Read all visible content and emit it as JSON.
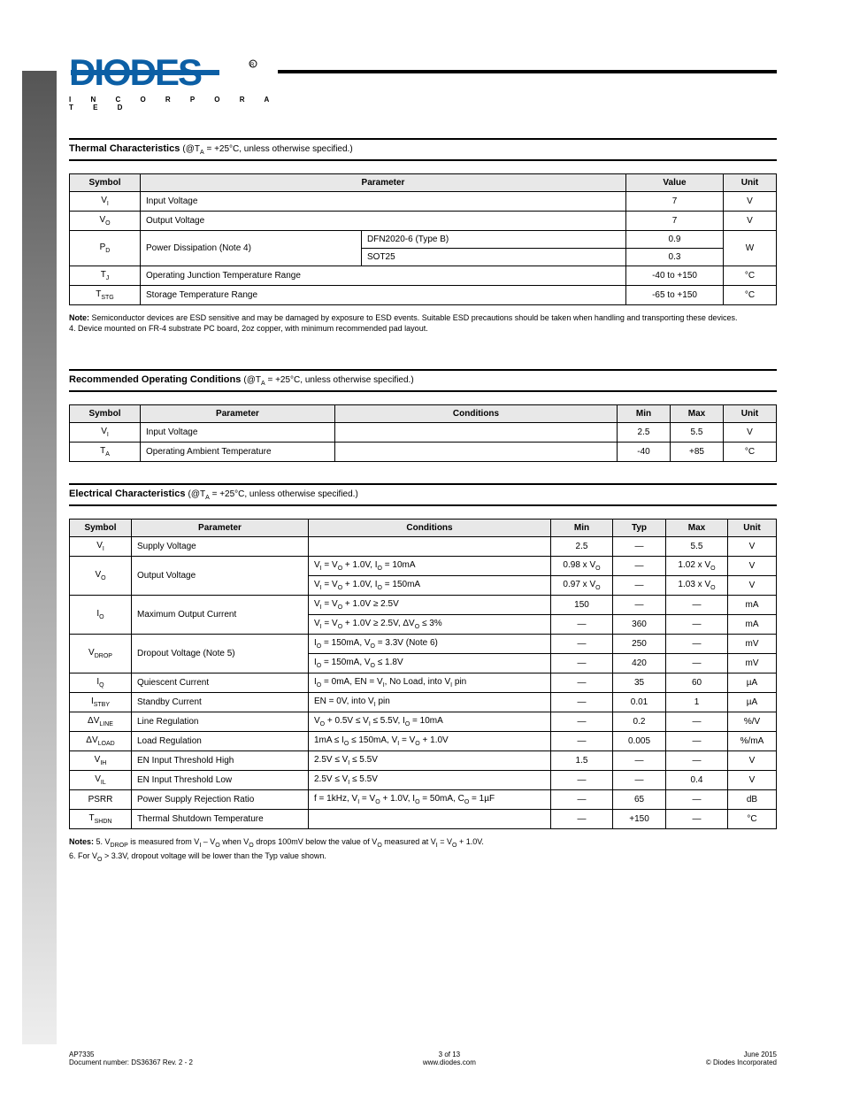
{
  "header": {
    "brand_word": "DIODES",
    "brand_sub": "I N C O R P O R A T E D",
    "brand_color": "#0c5fa5"
  },
  "section1": {
    "title": "Thermal Characteristics",
    "cond": "(@T",
    "cond_sub": "A",
    "cond_tail": " = +25°C, unless otherwise specified.)",
    "headers": [
      "Symbol",
      "Parameter",
      "Value",
      "Unit"
    ],
    "rows_simple": [
      {
        "sym": "V<sub>I</sub>",
        "param": "Input Voltage",
        "val": "7",
        "unit": "V"
      },
      {
        "sym": "V<sub>O</sub>",
        "param": "Output Voltage",
        "val": "7",
        "unit": "V"
      }
    ],
    "pd_symbol": "P<sub>D</sub>",
    "pd_param": "Power Dissipation (Note 4)",
    "pd_pkg1": "DFN2020-6 (Type B)",
    "pd_val1": "0.9",
    "pd_pkg2": "SOT25",
    "pd_val2": "0.3",
    "pd_unit": "W",
    "row_tj": {
      "sym": "T<sub>J</sub>",
      "param": "Operating Junction Temperature Range",
      "val": "-40 to +150",
      "unit": "°C"
    },
    "row_tstg": {
      "sym": "T<sub>STG</sub>",
      "param": "Storage Temperature Range",
      "val": "-65 to +150",
      "unit": "°C"
    },
    "notes": [
      "Semiconductor devices are ESD sensitive and may be damaged by exposure to ESD events. Suitable ESD precautions should be taken when handling and transporting these devices.",
      "4. Device mounted on FR-4 substrate PC board, 2oz copper, with minimum recommended pad layout."
    ]
  },
  "section2": {
    "title": "Recommended Operating Conditions",
    "cond": "(@T",
    "cond_sub": "A",
    "cond_tail": " = +25°C, unless otherwise specified.)",
    "headers": [
      "Symbol",
      "Parameter",
      "Conditions",
      "Min",
      "Max",
      "Unit"
    ],
    "rows": [
      {
        "sym": "V<sub>I</sub>",
        "param": "Input Voltage",
        "cond": "",
        "min": "2.5",
        "max": "5.5",
        "unit": "V"
      },
      {
        "sym": "T<sub>A</sub>",
        "param": "Operating Ambient Temperature",
        "cond": "",
        "min": "-40",
        "max": "+85",
        "unit": "°C"
      }
    ]
  },
  "section3": {
    "title": "Electrical Characteristics",
    "cond": "(@T",
    "cond_sub": "A",
    "cond_tail": " = +25°C, unless otherwise specified.)",
    "headers": [
      "Symbol",
      "Parameter",
      "Conditions",
      "Min",
      "Typ",
      "Max",
      "Unit"
    ],
    "rows": [
      {
        "sym": "V<sub>I</sub>",
        "param": "Supply Voltage",
        "cond": "",
        "min": "2.5",
        "typ": "—",
        "max": "5.5",
        "unit": "V"
      },
      {
        "sym": "V<sub>O</sub>",
        "param": "Output Voltage",
        "cond": "V<sub>I</sub> = V<sub>O</sub> + 1.0V, I<sub>O</sub> = 10mA",
        "min": "0.98 x V<sub>O</sub>",
        "typ": "—",
        "max": "1.02 x V<sub>O</sub>",
        "unit": "V",
        "rowspan": 2
      },
      {
        "cond": "V<sub>I</sub> = V<sub>O</sub> + 1.0V, I<sub>O</sub> = 150mA",
        "min": "0.97 x V<sub>O</sub>",
        "typ": "—",
        "max": "1.03 x V<sub>O</sub>",
        "unit": "V"
      },
      {
        "sym": "I<sub>O</sub>",
        "param": "Maximum Output Current",
        "cond": "V<sub>I</sub> = V<sub>O</sub> + 1.0V ≥ 2.5V",
        "min": "150",
        "typ": "—",
        "max": "—",
        "unit": "mA",
        "rowspan": 2
      },
      {
        "cond": "V<sub>I</sub> = V<sub>O</sub> + 1.0V ≥ 2.5V, ΔV<sub>O</sub> ≤ 3%",
        "min": "—",
        "typ": "360",
        "max": "—",
        "unit": "mA"
      },
      {
        "sym": "V<sub>DROP</sub>",
        "param": "Dropout Voltage (Note 5)",
        "cond": "I<sub>O</sub> = 150mA, V<sub>O</sub> = 3.3V (Note 6)",
        "min": "—",
        "typ": "250",
        "max": "—",
        "unit": "mV",
        "rowspan": 2
      },
      {
        "cond": "I<sub>O</sub> = 150mA, V<sub>O</sub> ≤ 1.8V",
        "min": "—",
        "typ": "420",
        "max": "—",
        "unit": "mV"
      },
      {
        "sym": "I<sub>Q</sub>",
        "param": "Quiescent Current",
        "cond": "I<sub>O</sub> = 0mA, EN = V<sub>I</sub>, No Load, into V<sub>I</sub> pin",
        "min": "—",
        "typ": "35",
        "max": "60",
        "unit": "µA"
      },
      {
        "sym": "I<sub>STBY</sub>",
        "param": "Standby Current",
        "cond": "EN = 0V, into V<sub>I</sub> pin",
        "min": "—",
        "typ": "0.01",
        "max": "1",
        "unit": "µA"
      },
      {
        "sym": "ΔV<sub>LINE</sub>",
        "param": "Line Regulation",
        "cond": "V<sub>O</sub> + 0.5V ≤ V<sub>I</sub> ≤ 5.5V, I<sub>O</sub> = 10mA",
        "min": "—",
        "typ": "0.2",
        "max": "—",
        "unit": "%/V"
      },
      {
        "sym": "ΔV<sub>LOAD</sub>",
        "param": "Load Regulation",
        "cond": "1mA ≤ I<sub>O</sub> ≤ 150mA, V<sub>I</sub> = V<sub>O</sub> + 1.0V",
        "min": "—",
        "typ": "0.005",
        "max": "—",
        "unit": "%/mA"
      },
      {
        "sym": "V<sub>IH</sub>",
        "param": "EN Input Threshold High",
        "cond": "2.5V ≤ V<sub>I</sub> ≤ 5.5V",
        "min": "1.5",
        "typ": "—",
        "max": "—",
        "unit": "V"
      },
      {
        "sym": "V<sub>IL</sub>",
        "param": "EN Input Threshold Low",
        "cond": "2.5V ≤ V<sub>I</sub> ≤ 5.5V",
        "min": "—",
        "typ": "—",
        "max": "0.4",
        "unit": "V"
      },
      {
        "sym": "PSRR",
        "param": "Power Supply Rejection Ratio",
        "cond": "f = 1kHz, V<sub>I</sub> = V<sub>O</sub> + 1.0V, I<sub>O</sub> = 50mA, C<sub>O</sub> = 1µF",
        "min": "—",
        "typ": "65",
        "max": "—",
        "unit": "dB"
      },
      {
        "sym": "T<sub>SHDN</sub>",
        "param": "Thermal Shutdown Temperature",
        "cond": "",
        "min": "—",
        "typ": "+150",
        "max": "—",
        "unit": "°C"
      }
    ],
    "notes": [
      "5. V<sub>DROP</sub> is measured from V<sub>I</sub> – V<sub>O</sub> when V<sub>O</sub> drops 100mV below the value of V<sub>O</sub> measured at V<sub>I</sub> = V<sub>O</sub> + 1.0V.",
      "6. For V<sub>O</sub> > 3.3V, dropout voltage will be lower than the Typ value shown."
    ]
  },
  "footer": {
    "left": "AP7335",
    "center_1": "Document number: DS36367 Rev. 2 - 2",
    "center_2": "www.diodes.com",
    "right_1": "3 of 13",
    "right_2": "June 2015",
    "right_3": "© Diodes Incorporated"
  }
}
